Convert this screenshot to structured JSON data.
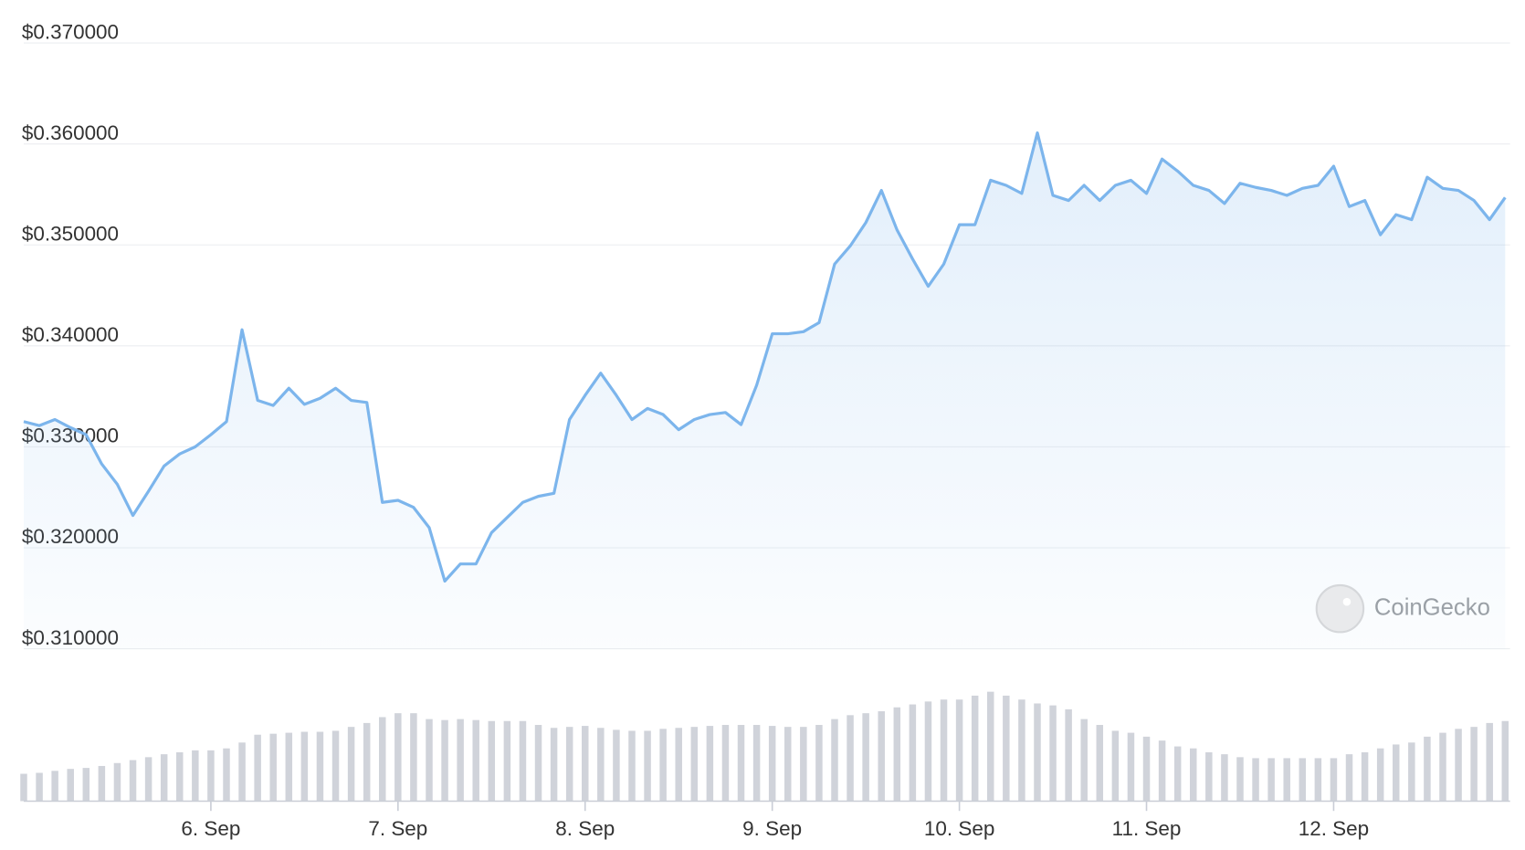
{
  "chart_data": {
    "type": "line",
    "watermark": "CoinGecko",
    "categories": [
      null,
      null,
      null,
      null,
      null,
      null,
      null,
      null,
      null,
      null,
      null,
      null,
      "6. Sep",
      null,
      null,
      null,
      null,
      null,
      null,
      null,
      null,
      null,
      null,
      null,
      "7. Sep",
      null,
      null,
      null,
      null,
      null,
      null,
      null,
      null,
      null,
      null,
      null,
      "8. Sep",
      null,
      null,
      null,
      null,
      null,
      null,
      null,
      null,
      null,
      null,
      null,
      "9. Sep",
      null,
      null,
      null,
      null,
      null,
      null,
      null,
      null,
      null,
      null,
      null,
      "10. Sep",
      null,
      null,
      null,
      null,
      null,
      null,
      null,
      null,
      null,
      null,
      null,
      "11. Sep",
      null,
      null,
      null,
      null,
      null,
      null,
      null,
      null,
      null,
      null,
      null,
      "12. Sep",
      null,
      null,
      null,
      null,
      null,
      null,
      null,
      null,
      null,
      null,
      null
    ],
    "series": [
      {
        "color": "#7cb5ec",
        "values": [
          0.3325,
          0.3321,
          0.3327,
          0.3319,
          0.3312,
          0.3283,
          0.3263,
          0.3232,
          0.3256,
          0.3281,
          0.3293,
          0.33,
          0.3312,
          0.3325,
          0.3416,
          0.3346,
          0.3341,
          0.3358,
          0.3342,
          0.3348,
          0.3358,
          0.3346,
          0.3344,
          0.3245,
          0.3247,
          0.324,
          0.322,
          0.3167,
          0.3184,
          0.3184,
          0.3215,
          0.323,
          0.3245,
          0.3251,
          0.3254,
          0.3327,
          0.3351,
          0.3373,
          0.3351,
          0.3327,
          0.3338,
          0.3332,
          0.3317,
          0.3327,
          0.3332,
          0.3334,
          0.3322,
          0.3361,
          0.3412,
          0.3412,
          0.3414,
          0.3423,
          0.3481,
          0.3499,
          0.3522,
          0.3554,
          0.3515,
          0.3486,
          0.3459,
          0.3481,
          0.352,
          0.352,
          0.3564,
          0.3559,
          0.3551,
          0.3611,
          0.3549,
          0.3544,
          0.3559,
          0.3544,
          0.3559,
          0.3564,
          0.3551,
          0.3585,
          0.3573,
          0.3559,
          0.3554,
          0.3541,
          0.3561,
          0.3557,
          0.3554,
          0.3549,
          0.3556,
          0.3559,
          0.3578,
          0.3538,
          0.3544,
          0.351,
          0.353,
          0.3525,
          0.3567,
          0.3556,
          0.3554,
          0.3544,
          0.3525,
          0.3547
        ]
      },
      {
        "color": "#d0d3da",
        "values": [
          28,
          29,
          31,
          33,
          34,
          36,
          39,
          42,
          45,
          48,
          50,
          52,
          52,
          54,
          60,
          68,
          69,
          70,
          71,
          71,
          72,
          76,
          80,
          86,
          90,
          90,
          84,
          83,
          84,
          83,
          82,
          82,
          82,
          78,
          75,
          76,
          77,
          75,
          73,
          72,
          72,
          74,
          75,
          76,
          77,
          78,
          78,
          78,
          77,
          76,
          76,
          78,
          84,
          88,
          90,
          92,
          96,
          99,
          102,
          104,
          104,
          108,
          112,
          108,
          104,
          100,
          98,
          94,
          84,
          78,
          72,
          70,
          66,
          62,
          56,
          54,
          50,
          48,
          45,
          44,
          44,
          44,
          44,
          44,
          44,
          48,
          50,
          54,
          58,
          60,
          66,
          70,
          74,
          76,
          80,
          82
        ]
      }
    ],
    "ylim": [
      0.31,
      0.37
    ],
    "yticks": [
      {
        "value": 0.31,
        "label": "$0.310000"
      },
      {
        "value": 0.32,
        "label": "$0.320000"
      },
      {
        "value": 0.33,
        "label": "$0.330000"
      },
      {
        "value": 0.34,
        "label": "$0.340000"
      },
      {
        "value": 0.35,
        "label": "$0.350000"
      },
      {
        "value": 0.36,
        "label": "$0.360000"
      },
      {
        "value": 0.37,
        "label": "$0.370000"
      }
    ],
    "grid": true
  }
}
